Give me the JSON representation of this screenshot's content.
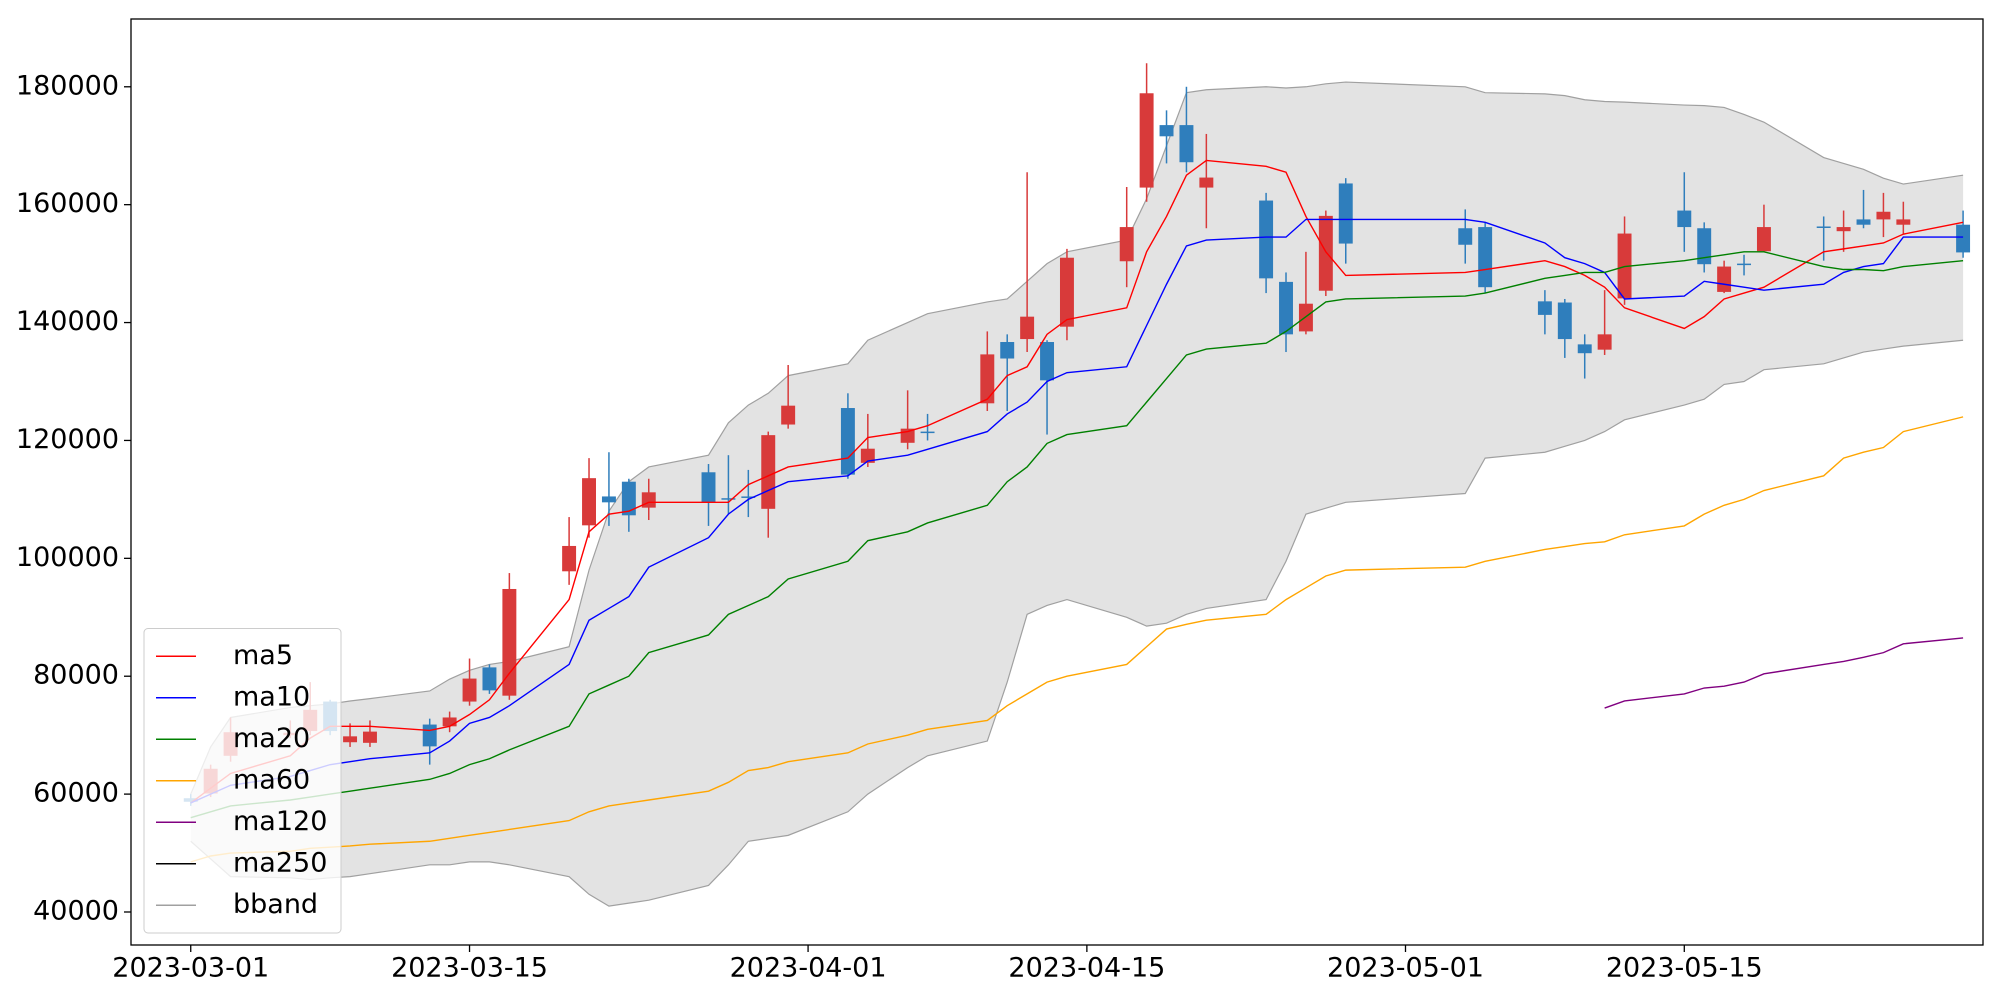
{
  "chart_data": {
    "type": "candlestick",
    "x": [
      "2023-03-01",
      "2023-03-02",
      "2023-03-03",
      "2023-03-06",
      "2023-03-07",
      "2023-03-08",
      "2023-03-09",
      "2023-03-10",
      "2023-03-13",
      "2023-03-14",
      "2023-03-15",
      "2023-03-16",
      "2023-03-17",
      "2023-03-20",
      "2023-03-21",
      "2023-03-22",
      "2023-03-23",
      "2023-03-24",
      "2023-03-27",
      "2023-03-28",
      "2023-03-29",
      "2023-03-30",
      "2023-03-31",
      "2023-04-03",
      "2023-04-04",
      "2023-04-06",
      "2023-04-07",
      "2023-04-10",
      "2023-04-11",
      "2023-04-12",
      "2023-04-13",
      "2023-04-14",
      "2023-04-17",
      "2023-04-18",
      "2023-04-19",
      "2023-04-20",
      "2023-04-21",
      "2023-04-24",
      "2023-04-25",
      "2023-04-26",
      "2023-04-27",
      "2023-04-28",
      "2023-05-04",
      "2023-05-05",
      "2023-05-08",
      "2023-05-09",
      "2023-05-10",
      "2023-05-11",
      "2023-05-12",
      "2023-05-15",
      "2023-05-16",
      "2023-05-17",
      "2023-05-18",
      "2023-05-19",
      "2023-05-22",
      "2023-05-23",
      "2023-05-24",
      "2023-05-25",
      "2023-05-26",
      "2023-05-29"
    ],
    "open": [
      59300,
      60100,
      66500,
      70000,
      70700,
      75700,
      68800,
      68700,
      71800,
      71500,
      75700,
      81500,
      76700,
      97800,
      105600,
      110500,
      113000,
      108600,
      114600,
      110200,
      110500,
      108400,
      122700,
      125500,
      116200,
      119600,
      121500,
      126300,
      136700,
      137200,
      136700,
      139300,
      150400,
      162900,
      173500,
      173500,
      162900,
      160700,
      146900,
      138500,
      145400,
      163600,
      156000,
      156200,
      143600,
      143400,
      136300,
      135400,
      144100,
      159000,
      156000,
      145200,
      150000,
      152100,
      156300,
      155500,
      157500,
      157500,
      156600,
      156600
    ],
    "high": [
      60000,
      65000,
      73000,
      72500,
      79000,
      76000,
      72000,
      72500,
      72800,
      74000,
      83000,
      82000,
      97500,
      107000,
      117000,
      118000,
      113500,
      113500,
      116000,
      117500,
      115000,
      121500,
      132800,
      128000,
      124500,
      128500,
      124500,
      138500,
      138000,
      165500,
      137000,
      152500,
      163000,
      184000,
      176000,
      180000,
      172000,
      162000,
      148500,
      152000,
      159000,
      164500,
      159200,
      157000,
      145500,
      144000,
      138000,
      145500,
      158000,
      165500,
      157000,
      150500,
      151500,
      160000,
      158000,
      159000,
      162500,
      162000,
      160500,
      159000
    ],
    "low": [
      58000,
      59500,
      65500,
      69500,
      70000,
      70000,
      68000,
      68000,
      65000,
      70500,
      75000,
      77000,
      76000,
      95500,
      103500,
      105500,
      104500,
      106500,
      105500,
      107500,
      107000,
      103500,
      122000,
      113500,
      115500,
      118500,
      120000,
      125000,
      125000,
      135000,
      121000,
      137000,
      146000,
      160500,
      167000,
      165500,
      156000,
      145000,
      135000,
      138000,
      144500,
      150000,
      150000,
      145000,
      138000,
      134000,
      130500,
      134500,
      143000,
      152000,
      148500,
      145000,
      148000,
      152000,
      150500,
      152000,
      156000,
      154500,
      155000,
      151000
    ],
    "close": [
      58700,
      64300,
      70500,
      70400,
      74300,
      70700,
      69800,
      70600,
      68100,
      73000,
      79600,
      77600,
      94800,
      102100,
      113600,
      109500,
      107300,
      111200,
      109500,
      110000,
      110300,
      120900,
      125900,
      114200,
      118600,
      122000,
      121300,
      134600,
      133900,
      141000,
      130200,
      151000,
      156200,
      178900,
      171600,
      167200,
      164600,
      147500,
      138000,
      143200,
      158100,
      153400,
      153200,
      146000,
      141300,
      137200,
      134800,
      138000,
      155100,
      156200,
      149900,
      149500,
      149900,
      156200,
      156100,
      156200,
      156600,
      158800,
      157500,
      151900
    ],
    "up_color": "#d83a3a",
    "down_color": "#2f7ebc",
    "series": [
      {
        "name": "ma5",
        "color": "#ff0000",
        "values": [
          58500,
          61000,
          63500,
          66500,
          69500,
          71500,
          71500,
          71500,
          70800,
          71500,
          73500,
          76000,
          80500,
          93000,
          104500,
          107500,
          108000,
          109500,
          109500,
          109500,
          112500,
          114000,
          115500,
          117000,
          120500,
          121500,
          122500,
          127000,
          131000,
          132500,
          138000,
          140500,
          142500,
          152000,
          158000,
          165000,
          167500,
          166500,
          165500,
          158000,
          152000,
          148000,
          148500,
          149000,
          150500,
          149500,
          148000,
          146000,
          142500,
          139000,
          141000,
          144000,
          145000,
          146000,
          152000,
          152500,
          153000,
          153500,
          155000,
          157000
        ]
      },
      {
        "name": "ma10",
        "color": "#0000ff",
        "values": [
          58500,
          60000,
          61500,
          63000,
          64000,
          65000,
          65500,
          66000,
          67000,
          69000,
          72000,
          73000,
          75000,
          82000,
          89500,
          91500,
          93500,
          98500,
          103500,
          107500,
          110000,
          111500,
          113000,
          114000,
          116500,
          117500,
          118500,
          121500,
          124500,
          126500,
          130000,
          131500,
          132500,
          139500,
          146500,
          153000,
          154000,
          154500,
          154500,
          157500,
          157500,
          157500,
          157500,
          157000,
          153500,
          151000,
          150000,
          148500,
          144000,
          144500,
          147000,
          146500,
          146000,
          145500,
          146500,
          148500,
          149500,
          150000,
          154500,
          154500
        ]
      },
      {
        "name": "ma20",
        "color": "#008000",
        "values": [
          56000,
          57000,
          58000,
          59000,
          59500,
          60000,
          60500,
          61000,
          62500,
          63500,
          65000,
          66000,
          67500,
          71500,
          77000,
          78500,
          80000,
          84000,
          87000,
          90500,
          92000,
          93500,
          96500,
          99500,
          103000,
          104500,
          106000,
          109000,
          113000,
          115500,
          119500,
          121000,
          122500,
          126500,
          130500,
          134500,
          135500,
          136500,
          138500,
          141000,
          143500,
          144000,
          144500,
          145000,
          147500,
          148000,
          148500,
          148500,
          149500,
          150500,
          151000,
          151500,
          152000,
          152000,
          149500,
          149000,
          149000,
          148800,
          149500,
          150500
        ]
      },
      {
        "name": "ma60",
        "color": "#ffa500",
        "values": [
          48500,
          49500,
          50000,
          50300,
          50800,
          51000,
          51200,
          51500,
          52000,
          52500,
          53000,
          53500,
          54000,
          55500,
          57000,
          58000,
          58500,
          59000,
          60500,
          62000,
          64000,
          64500,
          65500,
          67000,
          68500,
          70000,
          71000,
          72500,
          75000,
          77000,
          79000,
          80000,
          82000,
          85000,
          88000,
          88800,
          89500,
          90500,
          93000,
          95000,
          97000,
          98000,
          98500,
          99500,
          101500,
          102000,
          102500,
          102800,
          104000,
          105500,
          107500,
          109000,
          110000,
          111500,
          114000,
          117000,
          118000,
          118800,
          121500,
          124000
        ]
      },
      {
        "name": "ma120",
        "color": "#800080",
        "values": [
          null,
          null,
          null,
          null,
          null,
          null,
          null,
          null,
          null,
          null,
          null,
          null,
          null,
          null,
          null,
          null,
          null,
          null,
          null,
          null,
          null,
          null,
          null,
          null,
          null,
          null,
          null,
          null,
          null,
          null,
          null,
          null,
          null,
          null,
          null,
          null,
          null,
          null,
          null,
          null,
          null,
          null,
          null,
          null,
          null,
          null,
          null,
          74600,
          75800,
          77000,
          78000,
          78300,
          79000,
          80400,
          82000,
          82500,
          83200,
          84000,
          85500,
          86500
        ]
      },
      {
        "name": "ma250",
        "color": "#000000",
        "values": [
          null,
          null,
          null,
          null,
          null,
          null,
          null,
          null,
          null,
          null,
          null,
          null,
          null,
          null,
          null,
          null,
          null,
          null,
          null,
          null,
          null,
          null,
          null,
          null,
          null,
          null,
          null,
          null,
          null,
          null,
          null,
          null,
          null,
          null,
          null,
          null,
          null,
          null,
          null,
          null,
          null,
          null,
          null,
          null,
          null,
          null,
          null,
          null,
          null,
          null,
          null,
          null,
          null,
          null,
          null,
          null,
          null,
          null,
          null,
          null
        ]
      },
      {
        "name": "bband",
        "color": "#a0a0a0",
        "fill": "#e3e3e3",
        "upper": [
          60000,
          68000,
          73000,
          74700,
          75000,
          75300,
          75800,
          76200,
          77500,
          79500,
          81000,
          82000,
          82500,
          85000,
          98000,
          108000,
          113000,
          115500,
          117500,
          123000,
          126000,
          128000,
          131000,
          133000,
          137000,
          140000,
          141500,
          143500,
          144000,
          147000,
          150000,
          152000,
          154000,
          161000,
          170000,
          179000,
          179500,
          180000,
          179800,
          180000,
          180500,
          180800,
          180000,
          179000,
          178800,
          178500,
          177800,
          177500,
          177400,
          176900,
          176800,
          176500,
          175300,
          174000,
          168000,
          167000,
          166000,
          164500,
          163500,
          165000
        ],
        "lower": [
          52000,
          49000,
          46000,
          45800,
          45500,
          45800,
          46000,
          46500,
          48000,
          48000,
          48500,
          48500,
          48000,
          46000,
          43000,
          41000,
          41500,
          42000,
          44500,
          48000,
          52000,
          52500,
          53000,
          57000,
          60000,
          64500,
          66500,
          69000,
          79000,
          90500,
          92000,
          93000,
          90000,
          88500,
          89000,
          90500,
          91500,
          93000,
          99500,
          107500,
          108500,
          109500,
          111000,
          117000,
          118000,
          119000,
          120000,
          121500,
          123500,
          126000,
          127000,
          129500,
          130000,
          132000,
          133000,
          134000,
          135000,
          135500,
          136000,
          137000
        ]
      }
    ],
    "xlim": [
      "2023-02-26",
      "2023-05-30"
    ],
    "xticks": [
      "2023-03-01",
      "2023-03-15",
      "2023-04-01",
      "2023-04-15",
      "2023-05-01",
      "2023-05-15"
    ],
    "ylim": [
      34400,
      191500
    ],
    "yticks": [
      40000,
      60000,
      80000,
      100000,
      120000,
      140000,
      160000,
      180000
    ],
    "legend": "lower left"
  }
}
